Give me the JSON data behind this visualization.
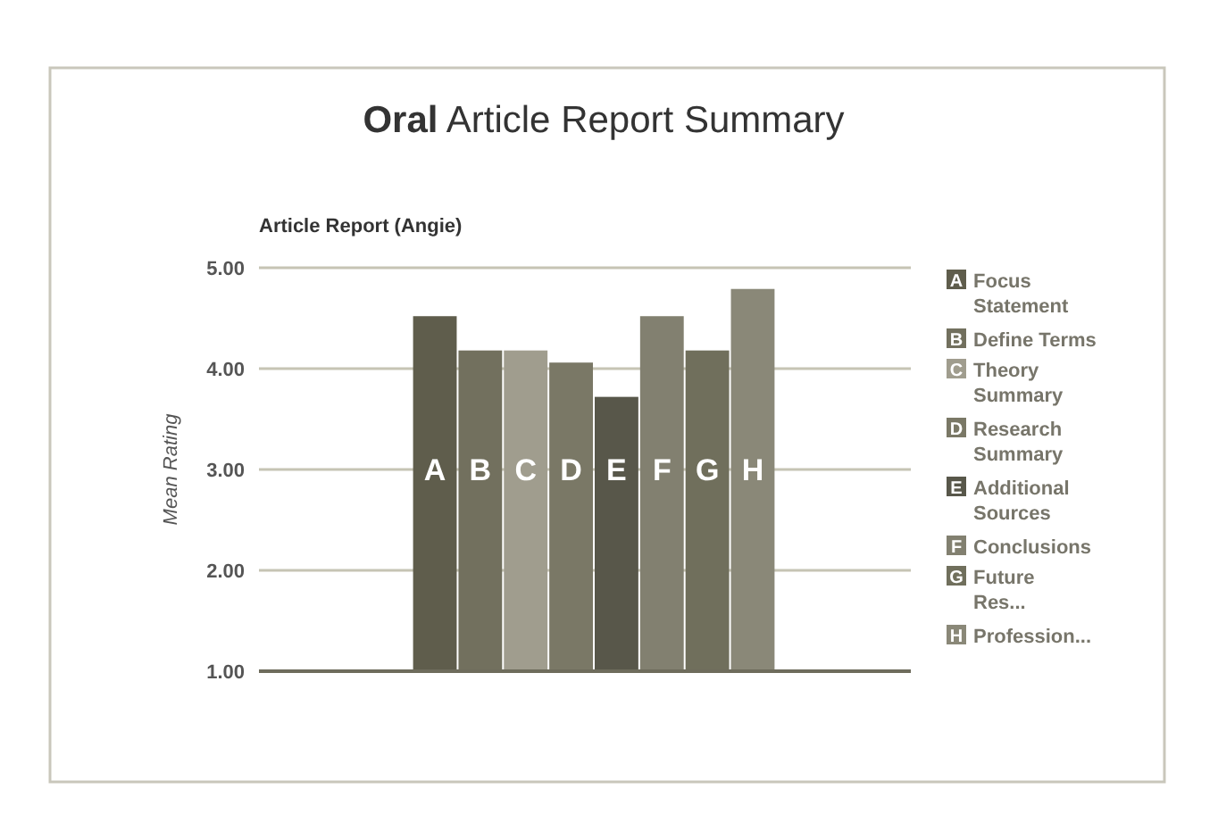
{
  "chart_data": {
    "type": "bar",
    "title": "Oral Article Report Summary",
    "subtitle": "Article Report (Angie)",
    "ylabel": "Mean Rating",
    "categories": [
      null
    ],
    "series": [
      {
        "name": "Focus Statement",
        "color": "#5f5d4c",
        "values": [
          4.52
        ],
        "value_labels": [
          "A"
        ]
      },
      {
        "name": "Define Terms",
        "color": "#72705e",
        "values": [
          4.18
        ],
        "value_labels": [
          "B"
        ]
      },
      {
        "name": "Theory Summary",
        "color": "#a09d8e",
        "values": [
          4.18
        ],
        "value_labels": [
          "C"
        ]
      },
      {
        "name": "Research Summary",
        "color": "#7a7866",
        "values": [
          4.06
        ],
        "value_labels": [
          "D"
        ]
      },
      {
        "name": "Additional Sources",
        "color": "#58574a",
        "values": [
          3.72
        ],
        "value_labels": [
          "E"
        ]
      },
      {
        "name": "Conclusions",
        "color": "#828070",
        "values": [
          4.52
        ],
        "value_labels": [
          "F"
        ]
      },
      {
        "name": "Future Res...",
        "color": "#706f5c",
        "values": [
          4.18
        ],
        "value_labels": [
          "G"
        ]
      },
      {
        "name": "Profession...",
        "color": "#8a8878",
        "values": [
          4.79
        ],
        "value_labels": [
          "H"
        ]
      }
    ],
    "ylim": [
      1,
      5
    ],
    "yticks": [
      {
        "value": 1,
        "label": "1.00"
      },
      {
        "value": 2,
        "label": "2.00"
      },
      {
        "value": 3,
        "label": "3.00"
      },
      {
        "value": 4,
        "label": "4.00"
      },
      {
        "value": 5,
        "label": "5.00"
      }
    ],
    "grid": "y",
    "legend": "right"
  }
}
